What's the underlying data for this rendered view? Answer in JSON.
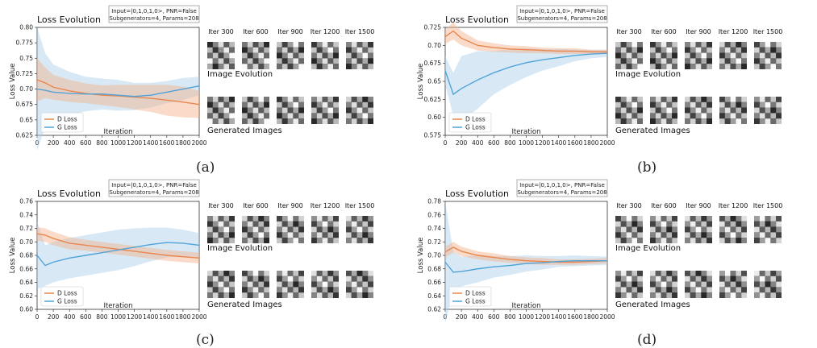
{
  "colors": {
    "d": "#e8864f",
    "g": "#4fa3d8",
    "d_band": "#f3b08a",
    "g_band": "#a9cfe8"
  },
  "panels": [
    {
      "caption": "(a)",
      "title": "Loss Evolution",
      "params_line1": "Input=|0,1,0,1,0>, PNR=False",
      "params_line2": "Subgenerators=4, Params=208",
      "xlabel": "Iteration",
      "ylabel": "Loss Value",
      "legend": [
        "D Loss",
        "G Loss"
      ],
      "iter_labels": [
        "Iter 300",
        "Iter 600",
        "Iter 900",
        "Iter 1200",
        "Iter 1500"
      ],
      "image_evolution_label": "Image Evolution",
      "generated_images_label": "Generated Images"
    },
    {
      "caption": "(b)",
      "title": "Loss Evolution",
      "params_line1": "Input=|0,1,0,1,0>, PNR=False",
      "params_line2": "Subgenerators=4, Params=208",
      "xlabel": "Iteration",
      "ylabel": "Loss Value",
      "legend": [
        "D Loss",
        "G Loss"
      ],
      "iter_labels": [
        "Iter 300",
        "Iter 600",
        "Iter 900",
        "Iter 1200",
        "Iter 1500"
      ],
      "image_evolution_label": "Image Evolution",
      "generated_images_label": "Generated Images"
    },
    {
      "caption": "(c)",
      "title": "Loss Evolution",
      "params_line1": "Input=|0,1,0,1,0>, PNR=False",
      "params_line2": "Subgenerators=4, Params=208",
      "xlabel": "Iteration",
      "ylabel": "Loss Value",
      "legend": [
        "D Loss",
        "G Loss"
      ],
      "iter_labels": [
        "Iter 300",
        "Iter 600",
        "Iter 900",
        "Iter 1200",
        "Iter 1500"
      ],
      "image_evolution_label": "Image Evolution",
      "generated_images_label": "Generated Images"
    },
    {
      "caption": "(d)",
      "title": "Loss Evolution",
      "params_line1": "Input=|0,1,0,1,0>, PNR=False",
      "params_line2": "Subgenerators=4, Params=208",
      "xlabel": "Iteration",
      "ylabel": "Loss Value",
      "legend": [
        "D Loss",
        "G Loss"
      ],
      "iter_labels": [
        "Iter 300",
        "Iter 600",
        "Iter 900",
        "Iter 1200",
        "Iter 1500"
      ],
      "image_evolution_label": "Image Evolution",
      "generated_images_label": "Generated Images"
    }
  ],
  "chart_data": [
    {
      "type": "line",
      "panel": "(a)",
      "title": "Loss Evolution",
      "xlabel": "Iteration",
      "ylabel": "Loss Value",
      "xlim": [
        0,
        2000
      ],
      "ylim": [
        0.625,
        0.8
      ],
      "xticks": [
        0,
        200,
        400,
        600,
        800,
        1000,
        1200,
        1400,
        1600,
        1800,
        2000
      ],
      "yticks": [
        0.625,
        0.65,
        0.675,
        0.7,
        0.725,
        0.75,
        0.775,
        0.8
      ],
      "legend_position": "bottom-left",
      "x": [
        0,
        100,
        200,
        400,
        600,
        800,
        1000,
        1200,
        1400,
        1600,
        1800,
        2000
      ],
      "series": [
        {
          "name": "D Loss",
          "values": [
            0.715,
            0.71,
            0.703,
            0.697,
            0.693,
            0.69,
            0.689,
            0.687,
            0.685,
            0.682,
            0.679,
            0.675
          ],
          "band": [
            0.035,
            0.025,
            0.02,
            0.018,
            0.016,
            0.016,
            0.018,
            0.02,
            0.022,
            0.025,
            0.025,
            0.022
          ]
        },
        {
          "name": "G Loss",
          "values": [
            0.7,
            0.698,
            0.695,
            0.693,
            0.692,
            0.692,
            0.69,
            0.688,
            0.69,
            0.695,
            0.7,
            0.705
          ],
          "band": [
            0.1,
            0.06,
            0.045,
            0.035,
            0.028,
            0.025,
            0.025,
            0.022,
            0.02,
            0.018,
            0.018,
            0.015
          ]
        }
      ]
    },
    {
      "type": "line",
      "panel": "(b)",
      "title": "Loss Evolution",
      "xlabel": "Iteration",
      "ylabel": "Loss Value",
      "xlim": [
        0,
        2000
      ],
      "ylim": [
        0.575,
        0.725
      ],
      "xticks": [
        0,
        200,
        400,
        600,
        800,
        1000,
        1200,
        1400,
        1600,
        1800,
        2000
      ],
      "yticks": [
        0.575,
        0.6,
        0.625,
        0.65,
        0.675,
        0.7,
        0.725
      ],
      "legend_position": "bottom-left",
      "x": [
        0,
        100,
        200,
        400,
        600,
        800,
        1000,
        1200,
        1400,
        1600,
        1800,
        2000
      ],
      "series": [
        {
          "name": "D Loss",
          "values": [
            0.712,
            0.72,
            0.71,
            0.7,
            0.697,
            0.695,
            0.694,
            0.693,
            0.692,
            0.692,
            0.691,
            0.691
          ],
          "band": [
            0.01,
            0.012,
            0.01,
            0.007,
            0.006,
            0.005,
            0.005,
            0.004,
            0.004,
            0.004,
            0.003,
            0.003
          ]
        },
        {
          "name": "G Loss",
          "values": [
            0.665,
            0.632,
            0.64,
            0.652,
            0.662,
            0.67,
            0.676,
            0.68,
            0.683,
            0.686,
            0.688,
            0.689
          ],
          "band": [
            0.02,
            0.03,
            0.045,
            0.04,
            0.03,
            0.025,
            0.02,
            0.015,
            0.012,
            0.008,
            0.006,
            0.005
          ]
        }
      ]
    },
    {
      "type": "line",
      "panel": "(c)",
      "title": "Loss Evolution",
      "xlabel": "Iteration",
      "ylabel": "Loss Value",
      "xlim": [
        0,
        2000
      ],
      "ylim": [
        0.6,
        0.76
      ],
      "xticks": [
        0,
        200,
        400,
        600,
        800,
        1000,
        1200,
        1400,
        1600,
        1800,
        2000
      ],
      "yticks": [
        0.6,
        0.62,
        0.64,
        0.66,
        0.68,
        0.7,
        0.72,
        0.74,
        0.76
      ],
      "legend_position": "bottom-left",
      "x": [
        0,
        100,
        200,
        400,
        600,
        800,
        1000,
        1200,
        1400,
        1600,
        1800,
        2000
      ],
      "series": [
        {
          "name": "D Loss",
          "values": [
            0.712,
            0.71,
            0.705,
            0.698,
            0.695,
            0.692,
            0.689,
            0.686,
            0.683,
            0.68,
            0.678,
            0.676
          ],
          "band": [
            0.01,
            0.01,
            0.01,
            0.009,
            0.008,
            0.008,
            0.008,
            0.008,
            0.008,
            0.008,
            0.008,
            0.008
          ]
        },
        {
          "name": "G Loss",
          "values": [
            0.68,
            0.665,
            0.67,
            0.676,
            0.68,
            0.684,
            0.688,
            0.692,
            0.696,
            0.699,
            0.698,
            0.695
          ],
          "band": [
            0.05,
            0.03,
            0.03,
            0.03,
            0.03,
            0.03,
            0.03,
            0.028,
            0.025,
            0.022,
            0.02,
            0.018
          ]
        }
      ]
    },
    {
      "type": "line",
      "panel": "(d)",
      "title": "Loss Evolution",
      "xlabel": "Iteration",
      "ylabel": "Loss Value",
      "xlim": [
        0,
        2000
      ],
      "ylim": [
        0.62,
        0.78
      ],
      "xticks": [
        0,
        200,
        400,
        600,
        800,
        1000,
        1200,
        1400,
        1600,
        1800,
        2000
      ],
      "yticks": [
        0.62,
        0.64,
        0.66,
        0.68,
        0.7,
        0.72,
        0.74,
        0.76,
        0.78
      ],
      "legend_position": "bottom-left",
      "x": [
        0,
        100,
        200,
        400,
        600,
        800,
        1000,
        1200,
        1400,
        1600,
        1800,
        2000
      ],
      "series": [
        {
          "name": "D Loss",
          "values": [
            0.705,
            0.712,
            0.706,
            0.7,
            0.697,
            0.694,
            0.692,
            0.691,
            0.69,
            0.69,
            0.691,
            0.692
          ],
          "band": [
            0.008,
            0.008,
            0.007,
            0.006,
            0.006,
            0.005,
            0.005,
            0.005,
            0.004,
            0.004,
            0.004,
            0.004
          ]
        },
        {
          "name": "G Loss",
          "values": [
            0.69,
            0.675,
            0.676,
            0.68,
            0.683,
            0.685,
            0.688,
            0.689,
            0.691,
            0.692,
            0.692,
            0.692
          ],
          "band": [
            0.09,
            0.03,
            0.022,
            0.02,
            0.016,
            0.014,
            0.012,
            0.01,
            0.008,
            0.008,
            0.007,
            0.006
          ]
        }
      ]
    }
  ]
}
